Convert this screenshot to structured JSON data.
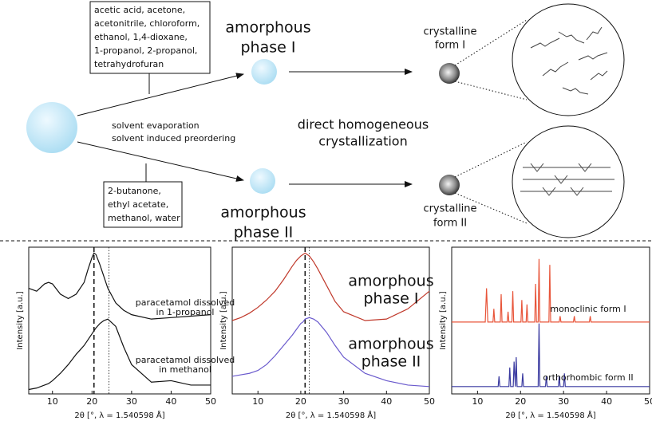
{
  "diagram": {
    "solvents_I": [
      "acetic acid, acetone,",
      "acetonitrile, chloroform,",
      "ethanol, 1,4-dioxane,",
      "1-propanol, 2-propanol,",
      "tetrahydrofuran"
    ],
    "solvents_II": [
      "2-butanone,",
      "ethyl acetate,",
      "methanol, water"
    ],
    "process": [
      "solvent evaporation",
      "solvent induced preordering"
    ],
    "center": [
      "direct homogeneous",
      "crystallization"
    ],
    "amorphous_I": [
      "amorphous",
      "phase I"
    ],
    "amorphous_II": [
      "amorphous",
      "phase II"
    ],
    "crystalline_I": [
      "crystalline",
      "form I"
    ],
    "crystalline_II": [
      "crystalline",
      "form II"
    ]
  },
  "chart_data": [
    {
      "type": "line",
      "xlabel": "2θ [°, λ = 1.540598 Å]",
      "ylabel": "Intensity [a.u.]",
      "xlim": [
        4,
        50
      ],
      "xticks": [
        10,
        20,
        30,
        40,
        50
      ],
      "ylim": [
        0,
        100
      ],
      "markers": [
        {
          "x": 20.5,
          "style": "dashed"
        },
        {
          "x": 24.3,
          "style": "dotted"
        }
      ],
      "series": [
        {
          "label_lines": [
            "paracetamol dissolved",
            "in 1-propanol"
          ],
          "color": "#111111",
          "x": [
            4,
            6,
            8,
            9,
            10,
            12,
            14,
            16,
            18,
            19,
            20,
            20.5,
            21,
            22,
            23,
            24,
            26,
            28,
            30,
            35,
            40,
            45,
            50
          ],
          "values": [
            72,
            70,
            75,
            76,
            75,
            68,
            65,
            68,
            76,
            85,
            93,
            96,
            95,
            88,
            80,
            72,
            62,
            57,
            54,
            51,
            52,
            53,
            54
          ]
        },
        {
          "label_lines": [
            "paracetamol dissolved",
            "in methanol"
          ],
          "color": "#111111",
          "x": [
            4,
            6,
            8,
            9,
            10,
            12,
            14,
            16,
            18,
            19,
            20,
            20.5,
            21,
            22,
            23,
            24,
            26,
            28,
            30,
            35,
            40,
            45,
            50
          ],
          "values": [
            3,
            4,
            6,
            7,
            9,
            14,
            20,
            27,
            33,
            37,
            41,
            43,
            45,
            48,
            50,
            51,
            46,
            32,
            20,
            8,
            9,
            6,
            6
          ]
        }
      ]
    },
    {
      "type": "line",
      "xlabel": "2θ [°, λ = 1.540598 Å]",
      "ylabel": "Intensity [a.u.]",
      "xlim": [
        4,
        50
      ],
      "xticks": [
        10,
        20,
        30,
        40,
        50
      ],
      "ylim": [
        0,
        100
      ],
      "markers": [
        {
          "x": 21,
          "style": "dashed"
        },
        {
          "x": 22,
          "style": "dotted"
        }
      ],
      "series": [
        {
          "label_lines": [
            "amorphous",
            "phase I"
          ],
          "color": "#c0392b",
          "x": [
            4,
            6,
            8,
            9,
            10,
            12,
            14,
            16,
            18,
            19,
            20,
            20.5,
            21,
            22,
            23,
            24,
            26,
            28,
            30,
            35,
            40,
            45,
            50
          ],
          "values": [
            50,
            52,
            55,
            57,
            59,
            64,
            70,
            78,
            87,
            91,
            94,
            95,
            96,
            94,
            90,
            85,
            74,
            63,
            56,
            50,
            51,
            58,
            70
          ]
        },
        {
          "label_lines": [
            "amorphous",
            "phase II"
          ],
          "color": "#6a5acd",
          "x": [
            4,
            6,
            8,
            9,
            10,
            12,
            14,
            16,
            18,
            19,
            20,
            20.5,
            21,
            22,
            23,
            24,
            26,
            28,
            30,
            35,
            40,
            45,
            50
          ],
          "values": [
            12,
            13,
            14,
            15,
            16,
            20,
            26,
            33,
            40,
            44,
            48,
            49,
            51,
            52,
            51,
            49,
            42,
            33,
            25,
            14,
            9,
            6,
            5
          ]
        }
      ]
    },
    {
      "type": "line",
      "xlabel": "2θ [°, λ = 1.540598 Å]",
      "ylabel": "Intensity [a.u.]",
      "xlim": [
        4,
        50
      ],
      "xticks": [
        10,
        20,
        30,
        40,
        50
      ],
      "ylim": [
        0,
        100
      ],
      "markers": [],
      "series": [
        {
          "label_lines": [
            "monoclinic form I"
          ],
          "color": "#e8553a",
          "x": [
            4,
            11.8,
            12.1,
            12.4,
            13.6,
            13.8,
            14,
            15.3,
            15.5,
            15.7,
            16.9,
            17.1,
            17.3,
            18,
            18.2,
            18.4,
            20.1,
            20.3,
            20.5,
            21.3,
            21.5,
            21.7,
            23.3,
            23.5,
            23.7,
            24.1,
            24.3,
            24.5,
            26.6,
            26.8,
            27,
            29,
            29.2,
            29.4,
            32.3,
            32.5,
            32.7,
            36,
            36.2,
            36.4,
            50
          ],
          "values": [
            49,
            49,
            72,
            49,
            49,
            58,
            49,
            49,
            68,
            49,
            49,
            56,
            49,
            49,
            70,
            49,
            49,
            64,
            49,
            49,
            61,
            49,
            49,
            75,
            49,
            49,
            92,
            49,
            49,
            88,
            49,
            49,
            53,
            49,
            49,
            53,
            49,
            49,
            53,
            49,
            49
          ]
        },
        {
          "label_lines": [
            "orthorhombic form II"
          ],
          "color": "#3a3aa0",
          "x": [
            4,
            14.8,
            15,
            15.2,
            17.3,
            17.5,
            17.7,
            18.3,
            18.5,
            18.8,
            19,
            19.2,
            20.3,
            20.5,
            20.7,
            24.1,
            24.3,
            24.5,
            25.8,
            26,
            26.2,
            28.8,
            29,
            29.2,
            30,
            30.2,
            30.4,
            50
          ],
          "values": [
            5,
            5,
            12,
            5,
            5,
            18,
            5,
            5,
            22,
            5,
            25,
            5,
            5,
            14,
            5,
            5,
            48,
            5,
            5,
            12,
            5,
            5,
            12,
            5,
            5,
            14,
            5,
            5
          ]
        }
      ]
    }
  ]
}
